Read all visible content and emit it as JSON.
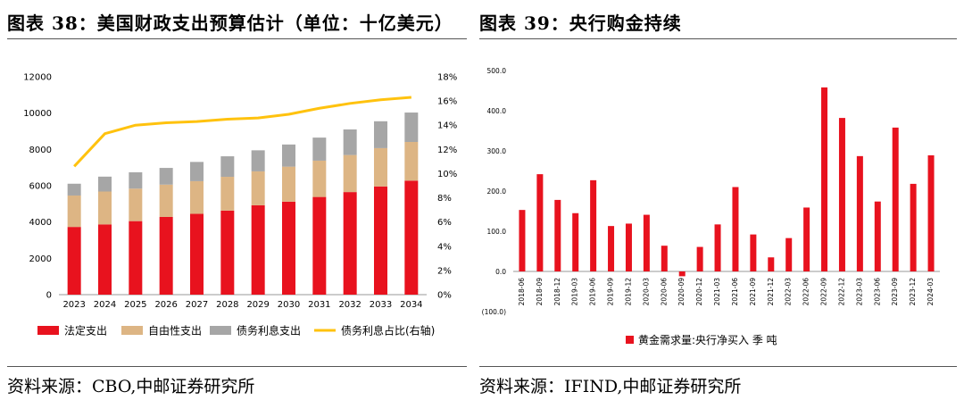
{
  "left_panel": {
    "title": "图表 38：美国财政支出预算估计（单位：十亿美元）",
    "source": "资料来源：CBO,中邮证券研究所",
    "chart_data": {
      "type": "bar",
      "stacked": true,
      "categories": [
        "2023",
        "2024",
        "2025",
        "2026",
        "2027",
        "2028",
        "2029",
        "2030",
        "2031",
        "2032",
        "2033",
        "2034"
      ],
      "series": [
        {
          "name": "法定支出",
          "color": "#e8121e",
          "values": [
            3730,
            3870,
            4050,
            4280,
            4450,
            4630,
            4920,
            5120,
            5380,
            5650,
            5960,
            6280
          ]
        },
        {
          "name": "自由性支出",
          "color": "#ddb584",
          "values": [
            1730,
            1810,
            1790,
            1780,
            1800,
            1860,
            1870,
            1930,
            2000,
            2040,
            2110,
            2130
          ]
        },
        {
          "name": "债务利息支出",
          "color": "#a6a6a6",
          "values": [
            650,
            820,
            900,
            920,
            1060,
            1130,
            1160,
            1220,
            1270,
            1410,
            1480,
            1620
          ]
        },
        {
          "name": "债务利息占比(右轴)",
          "color": "#ffc20e",
          "type": "line",
          "axis": "right",
          "values": [
            10.6,
            13.3,
            14.0,
            14.2,
            14.3,
            14.5,
            14.6,
            14.9,
            15.4,
            15.8,
            16.1,
            16.3
          ]
        }
      ],
      "y_left": {
        "min": 0,
        "max": 12000,
        "ticks": [
          "0",
          "2000",
          "4000",
          "6000",
          "8000",
          "10000",
          "12000"
        ]
      },
      "y_right": {
        "min": 0,
        "max": 18,
        "ticks": [
          "0%",
          "2%",
          "4%",
          "6%",
          "8%",
          "10%",
          "12%",
          "14%",
          "16%",
          "18%"
        ]
      },
      "legend_position": "bottom",
      "grid": false
    }
  },
  "right_panel": {
    "title": "图表 39：央行购金持续",
    "source": "资料来源：IFIND,中邮证券研究所",
    "chart_data": {
      "type": "bar",
      "categories": [
        "2018-06",
        "2018-09",
        "2018-12",
        "2019-03",
        "2019-06",
        "2019-09",
        "2019-12",
        "2020-03",
        "2020-06",
        "2020-09",
        "2020-12",
        "2021-03",
        "2021-06",
        "2021-09",
        "2021-12",
        "2022-03",
        "2022-06",
        "2022-09",
        "2022-12",
        "2023-03",
        "2023-06",
        "2023-09",
        "2023-12",
        "2024-03"
      ],
      "series": [
        {
          "name": "黄金需求量:央行净买入 季 吨",
          "color": "#e8121e",
          "values": [
            153,
            242,
            178,
            145,
            227,
            113,
            119,
            141,
            64,
            -12,
            61,
            117,
            210,
            92,
            35,
            83,
            159,
            458,
            382,
            287,
            174,
            358,
            218,
            289
          ]
        }
      ],
      "y": {
        "min": -100,
        "max": 500,
        "ticks": [
          "(100.0)",
          "0.0",
          "100.0",
          "200.0",
          "300.0",
          "400.0",
          "500.0"
        ]
      },
      "legend_position": "bottom",
      "grid": false
    }
  }
}
